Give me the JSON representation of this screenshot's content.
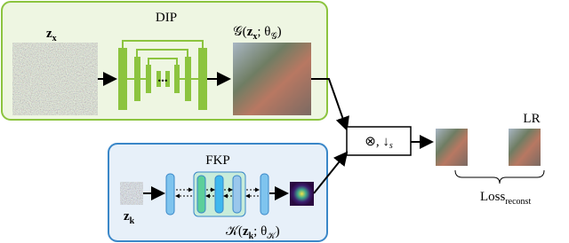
{
  "dip": {
    "title": "DIP",
    "input_label": {
      "base": "z",
      "sub": "x"
    },
    "output_label": {
      "open": "𝒢(",
      "base": "z",
      "sub": "x",
      "sep": "; θ",
      "param_sub": "𝒢",
      "close": ")"
    },
    "ellipsis": "..."
  },
  "fkp": {
    "title": "FKP",
    "input_label": {
      "base": "z",
      "sub": "k"
    },
    "output_label": {
      "open": "𝒦(",
      "base": "z",
      "sub": "k",
      "sep": "; θ",
      "param_sub": "𝒦",
      "close": ")"
    }
  },
  "operator": {
    "symbol": "⊗, ↓",
    "sub": "s"
  },
  "lr_label": "LR",
  "loss": {
    "base": "Loss",
    "sub": "reconst"
  }
}
